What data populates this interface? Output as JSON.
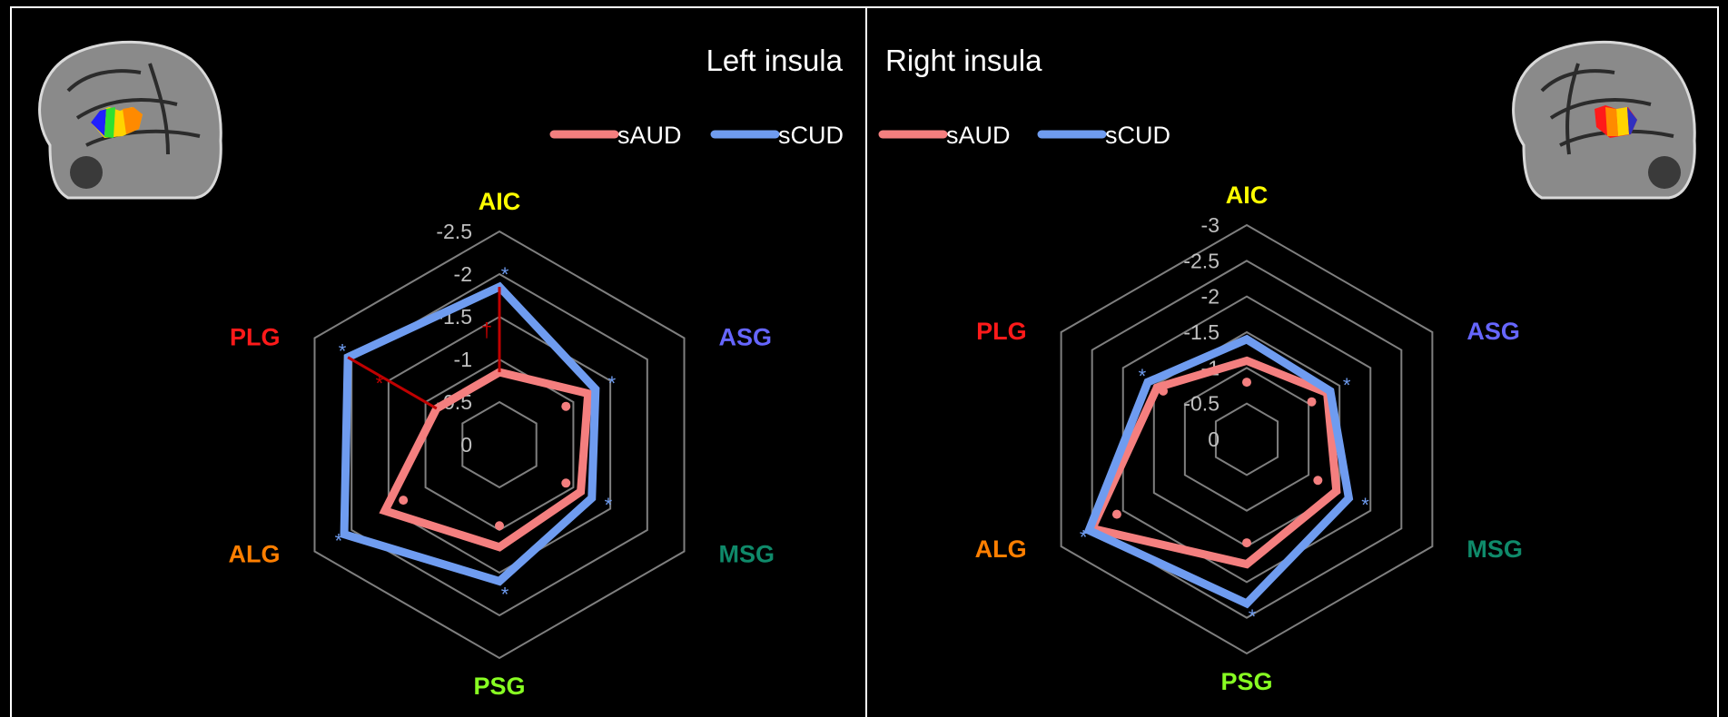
{
  "colors": {
    "sAUD": "#f47f7f",
    "sCUD": "#6f9cf0",
    "grid": "#7f7f7f",
    "background": "#000000",
    "annotation": "#c00000",
    "axis_AIC": "#ffff00",
    "axis_ASG": "#6666ff",
    "axis_MSG": "#0f8a6a",
    "axis_PSG": "#88ff22",
    "axis_ALG": "#ff7f00",
    "axis_PLG": "#ff1a1a"
  },
  "chart_data": [
    {
      "type": "radar",
      "title": "Left insula",
      "axes": [
        "AIC",
        "ASG",
        "MSG",
        "PSG",
        "ALG",
        "PLG"
      ],
      "ticks": [
        "-2.5",
        "-2",
        "-1.5",
        "-1",
        "-0.5",
        "0"
      ],
      "range": [
        0,
        -2.5
      ],
      "grid": true,
      "legend": [
        "sAUD",
        "sCUD"
      ],
      "series": [
        {
          "name": "sAUD",
          "values": [
            -0.85,
            -1.2,
            -1.1,
            -1.2,
            -1.55,
            -0.85
          ]
        },
        {
          "name": "sCUD",
          "values": [
            -1.85,
            -1.3,
            -1.25,
            -1.6,
            -2.1,
            -2.05
          ]
        }
      ],
      "scud_significance": [
        "*",
        "*",
        "*",
        "*",
        "*",
        "*"
      ],
      "saud_points": [
        null,
        -0.9,
        -0.9,
        -0.95,
        -1.3,
        null
      ],
      "annotations": [
        {
          "axis": "AIC",
          "text": "†"
        },
        {
          "axis": "PLG",
          "text": "*"
        }
      ],
      "brain_icon": "brain-sagittal-left-icon"
    },
    {
      "type": "radar",
      "title": "Right insula",
      "axes": [
        "AIC",
        "ASG",
        "MSG",
        "PSG",
        "ALG",
        "PLG"
      ],
      "ticks": [
        "-3",
        "-2.5",
        "-2",
        "-1.5",
        "-1",
        "-0.5",
        "0"
      ],
      "range": [
        0,
        -3
      ],
      "grid": true,
      "legend": [
        "sAUD",
        "sCUD"
      ],
      "series": [
        {
          "name": "sAUD",
          "values": [
            -1.1,
            -1.3,
            -1.45,
            -1.75,
            -2.5,
            -1.45
          ]
        },
        {
          "name": "sCUD",
          "values": [
            -1.4,
            -1.35,
            -1.65,
            -2.3,
            -2.55,
            -1.6
          ]
        }
      ],
      "scud_significance": [
        null,
        "*",
        "*",
        "*",
        "*",
        "*"
      ],
      "saud_points": [
        -0.8,
        -1.05,
        -1.15,
        -1.45,
        -2.1,
        -1.35
      ],
      "annotations": [],
      "brain_icon": "brain-sagittal-right-icon"
    }
  ]
}
